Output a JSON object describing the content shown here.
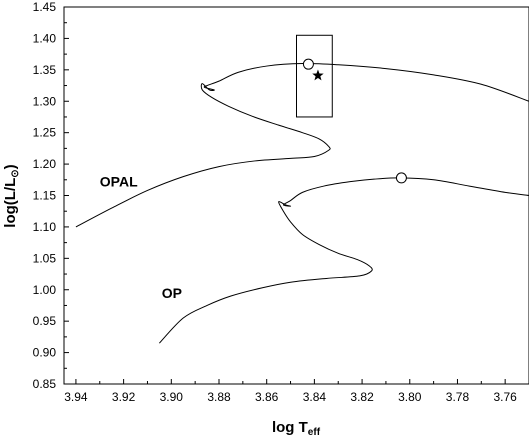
{
  "chart_data": {
    "type": "line",
    "x_axis": {
      "label_main": "log T",
      "label_sub": "eff",
      "range": [
        3.945,
        3.75
      ],
      "ticks": [
        3.94,
        3.92,
        3.9,
        3.88,
        3.86,
        3.84,
        3.82,
        3.8,
        3.78,
        3.76
      ],
      "tick_labels": [
        "3.94",
        "3.92",
        "3.90",
        "3.88",
        "3.86",
        "3.84",
        "3.82",
        "3.80",
        "3.78",
        "3.76"
      ],
      "reversed": true
    },
    "y_axis": {
      "label_main": "log(L/L",
      "label_sub": "⊙",
      "label_close": ")",
      "range": [
        0.85,
        1.45
      ],
      "ticks": [
        0.85,
        0.9,
        0.95,
        1.0,
        1.05,
        1.1,
        1.15,
        1.2,
        1.25,
        1.3,
        1.35,
        1.4,
        1.45
      ],
      "tick_labels": [
        "0.85",
        "0.90",
        "0.95",
        "1.00",
        "1.05",
        "1.10",
        "1.15",
        "1.20",
        "1.25",
        "1.30",
        "1.35",
        "1.40",
        "1.45"
      ]
    },
    "grid": false,
    "series": [
      {
        "name": "OPAL",
        "x": [
          3.94,
          3.925,
          3.91,
          3.895,
          3.88,
          3.865,
          3.85,
          3.84,
          3.834,
          3.834,
          3.838,
          3.845,
          3.855,
          3.866,
          3.876,
          3.883,
          3.887,
          3.887,
          3.884,
          3.882,
          3.886,
          3.885,
          3.88,
          3.872,
          3.86,
          3.845,
          3.83,
          3.81,
          3.79,
          3.77,
          3.75
        ],
        "y": [
          1.1,
          1.13,
          1.158,
          1.18,
          1.196,
          1.205,
          1.209,
          1.212,
          1.222,
          1.228,
          1.24,
          1.25,
          1.262,
          1.276,
          1.292,
          1.306,
          1.318,
          1.328,
          1.318,
          1.318,
          1.322,
          1.325,
          1.332,
          1.346,
          1.356,
          1.36,
          1.358,
          1.352,
          1.342,
          1.327,
          1.3
        ]
      },
      {
        "name": "OP",
        "x": [
          3.905,
          3.895,
          3.885,
          3.875,
          3.862,
          3.85,
          3.835,
          3.821,
          3.816,
          3.817,
          3.822,
          3.83,
          3.838,
          3.845,
          3.85,
          3.853,
          3.855,
          3.852,
          3.85,
          3.853,
          3.85,
          3.845,
          3.836,
          3.825,
          3.815,
          3.804,
          3.79,
          3.775,
          3.76,
          3.75
        ],
        "y": [
          0.915,
          0.955,
          0.975,
          0.99,
          1.003,
          1.012,
          1.018,
          1.022,
          1.03,
          1.038,
          1.048,
          1.058,
          1.072,
          1.088,
          1.108,
          1.125,
          1.14,
          1.135,
          1.133,
          1.135,
          1.142,
          1.155,
          1.165,
          1.172,
          1.176,
          1.178,
          1.175,
          1.165,
          1.155,
          1.15
        ]
      }
    ],
    "markers": [
      {
        "type": "open-circle",
        "x": 3.8425,
        "y": 1.359
      },
      {
        "type": "open-circle",
        "x": 3.8035,
        "y": 1.178
      },
      {
        "type": "star",
        "x": 3.8385,
        "y": 1.341
      }
    ],
    "box": {
      "x": [
        3.8475,
        3.8325
      ],
      "y": [
        1.275,
        1.405
      ]
    },
    "annotations": [
      {
        "text": "OPAL",
        "x": 3.93,
        "y": 1.164
      },
      {
        "text": "OP",
        "x": 3.904,
        "y": 0.987
      }
    ]
  }
}
